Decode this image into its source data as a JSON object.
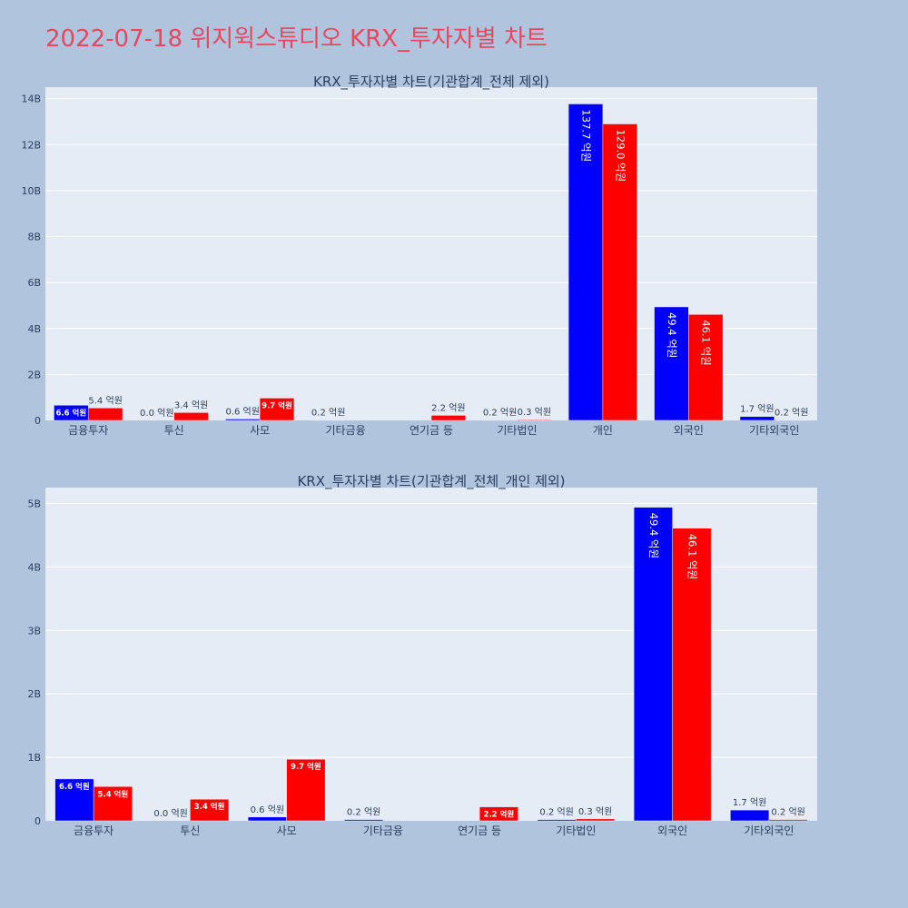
{
  "page": {
    "title": "2022-07-18 위지윅스튜디오 KRX_투자자별 차트"
  },
  "colors": {
    "background": "#b0c4de",
    "plot_background": "#e5ecf6",
    "title": "#e8475f",
    "series_a": "#0000ff",
    "series_b": "#ff0000"
  },
  "chart_data": [
    {
      "type": "bar",
      "title": "KRX_투자자별 차트(기관합계_전체 제외)",
      "categories": [
        "금융투자",
        "투신",
        "사모",
        "기타금융",
        "연기금 등",
        "기타법인",
        "개인",
        "외국인",
        "기타외국인"
      ],
      "series": [
        {
          "color": "#0000ff",
          "values": [
            0.66,
            0.0,
            0.06,
            0.02,
            0.0,
            0.02,
            13.77,
            4.94,
            0.17
          ],
          "labels": [
            "6.6 억원",
            "0.0 억원",
            "0.6 억원",
            "0.2 억원",
            "",
            "0.2 억원",
            "137.7 억원",
            "49.4 억원",
            "1.7 억원"
          ]
        },
        {
          "color": "#ff0000",
          "values": [
            0.54,
            0.34,
            0.97,
            0.0,
            0.22,
            0.03,
            12.9,
            4.61,
            0.02
          ],
          "labels": [
            "5.4 억원",
            "3.4 억원",
            "9.7 억원",
            "",
            "2.2 억원",
            "0.3 억원",
            "129.0 억원",
            "46.1 억원",
            "0.2 억원"
          ]
        }
      ],
      "ylim": [
        0,
        14.5
      ],
      "yticks": [
        0,
        2,
        4,
        6,
        8,
        10,
        12,
        14
      ],
      "ytick_labels": [
        "0",
        "2B",
        "4B",
        "6B",
        "8B",
        "10B",
        "12B",
        "14B"
      ],
      "grid": true
    },
    {
      "type": "bar",
      "title": "KRX_투자자별 차트(기관합계_전체_개인 제외)",
      "categories": [
        "금융투자",
        "투신",
        "사모",
        "기타금융",
        "연기금 등",
        "기타법인",
        "외국인",
        "기타외국인"
      ],
      "series": [
        {
          "color": "#0000ff",
          "values": [
            0.66,
            0.0,
            0.06,
            0.02,
            0.0,
            0.02,
            4.94,
            0.17
          ],
          "labels": [
            "6.6 억원",
            "0.0 억원",
            "0.6 억원",
            "0.2 억원",
            "",
            "0.2 억원",
            "49.4 억원",
            "1.7 억원"
          ]
        },
        {
          "color": "#ff0000",
          "values": [
            0.54,
            0.34,
            0.97,
            0.0,
            0.22,
            0.03,
            4.61,
            0.02
          ],
          "labels": [
            "5.4 억원",
            "3.4 억원",
            "9.7 억원",
            "",
            "2.2 억원",
            "0.3 억원",
            "46.1 억원",
            "0.2 억원"
          ]
        }
      ],
      "ylim": [
        0,
        5.25
      ],
      "yticks": [
        0,
        1,
        2,
        3,
        4,
        5
      ],
      "ytick_labels": [
        "0",
        "1B",
        "2B",
        "3B",
        "4B",
        "5B"
      ],
      "grid": true
    }
  ]
}
